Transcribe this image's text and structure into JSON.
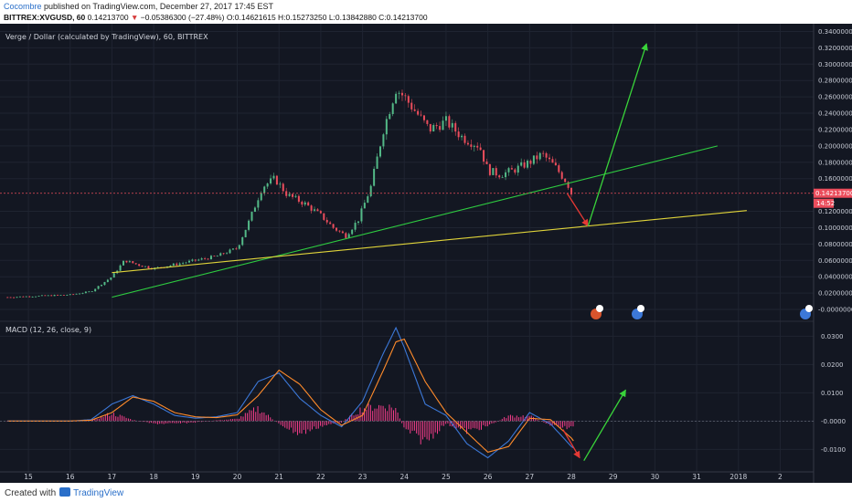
{
  "header": {
    "author": "Cocombre",
    "published": " published on TradingView.com, December 27, 2017 17:45 EST",
    "symbol": "BITTREX:XVGUSD, 60",
    "last": "0.14213700",
    "change_arrow": "▼",
    "change": "−0.05386300 (−27.48%)",
    "ohlc": "O:0.14621615 H:0.15273250 L:0.13842880 C:0.14213700"
  },
  "main_pane": {
    "title": "Verge / Dollar (calculated by TradingView), 60, BITTREX",
    "price_tag": "0.14213700",
    "time_tag": "14:52"
  },
  "macd_pane": {
    "title": "MACD (12, 26, close, 9)"
  },
  "footer": {
    "created_with": "Created with",
    "brand": "TradingView"
  },
  "colors": {
    "background": "#131722",
    "up": "#53b987",
    "down": "#eb4d5c",
    "macd_line": "#3c78d8",
    "signal_line": "#ff8b2b",
    "histogram": "#ff3f8f",
    "green_trend": "#2ecc40",
    "yellow_trend": "#e0d43a",
    "projection_up": "#39d43a",
    "projection_down": "#e53935"
  },
  "chart_data": [
    {
      "type": "line",
      "pane": "price",
      "title": "Verge / Dollar (calculated by TradingView), 60, BITTREX",
      "x": [
        "14.5",
        "15",
        "15.5",
        "16",
        "16.5",
        "17",
        "17.3",
        "17.6",
        "18",
        "18.5",
        "19",
        "19.5",
        "20",
        "20.3",
        "20.6",
        "20.9",
        "21.2",
        "21.6",
        "22",
        "22.3",
        "22.6",
        "22.9",
        "23.2",
        "23.5",
        "23.8",
        "24",
        "24.3",
        "24.6",
        "25",
        "25.4",
        "25.8",
        "26",
        "26.3",
        "26.6",
        "27",
        "27.3",
        "27.6",
        "27.9",
        "28.0"
      ],
      "close": [
        0.015,
        0.016,
        0.017,
        0.018,
        0.022,
        0.04,
        0.06,
        0.055,
        0.05,
        0.055,
        0.06,
        0.065,
        0.075,
        0.11,
        0.15,
        0.16,
        0.14,
        0.13,
        0.115,
        0.1,
        0.09,
        0.11,
        0.15,
        0.22,
        0.27,
        0.26,
        0.24,
        0.22,
        0.23,
        0.21,
        0.2,
        0.17,
        0.165,
        0.17,
        0.18,
        0.19,
        0.175,
        0.155,
        0.142
      ],
      "xlabel": "",
      "ylabel": "",
      "ylim": [
        -0.01,
        0.345
      ],
      "y_ticks": [
        "0.34000000",
        "0.32000000",
        "0.30000000",
        "0.28000000",
        "0.26000000",
        "0.24000000",
        "0.22000000",
        "0.20000000",
        "0.18000000",
        "0.16000000",
        "0.12000000",
        "0.10000000",
        "0.08000000",
        "0.06000000",
        "0.04000000",
        "0.02000000",
        "-0.00000000"
      ],
      "x_ticks": [
        "15",
        "16",
        "17",
        "18",
        "19",
        "20",
        "21",
        "22",
        "23",
        "24",
        "25",
        "26",
        "27",
        "28",
        "29",
        "30",
        "31",
        "2018",
        "2"
      ],
      "last_price": 0.142137,
      "trendlines": [
        {
          "name": "green",
          "x": [
            17,
            31.5
          ],
          "y": [
            0.015,
            0.2
          ]
        },
        {
          "name": "yellow",
          "x": [
            17,
            32.2
          ],
          "y": [
            0.045,
            0.121
          ]
        }
      ],
      "projections": [
        {
          "name": "down",
          "x": [
            27.9,
            28.4
          ],
          "y": [
            0.142,
            0.102
          ]
        },
        {
          "name": "up",
          "x": [
            28.4,
            29.8
          ],
          "y": [
            0.102,
            0.325
          ]
        }
      ]
    },
    {
      "type": "line",
      "pane": "macd",
      "title": "MACD (12, 26, close, 9)",
      "x": [
        "14.5",
        "15",
        "16",
        "16.5",
        "17",
        "17.5",
        "18",
        "18.5",
        "19",
        "19.5",
        "20",
        "20.5",
        "21",
        "21.5",
        "22",
        "22.5",
        "23",
        "23.5",
        "23.8",
        "24",
        "24.5",
        "25",
        "25.5",
        "26",
        "26.5",
        "27",
        "27.5",
        "28",
        "28.1"
      ],
      "series": [
        {
          "name": "",
          "values": [
            0,
            0,
            0,
            0.0005,
            0.006,
            0.009,
            0.006,
            0.002,
            0.001,
            0.0015,
            0.003,
            0.014,
            0.017,
            0.008,
            0.002,
            -0.002,
            0.007,
            0.024,
            0.033,
            0.026,
            0.006,
            0.002,
            -0.008,
            -0.013,
            -0.007,
            0.003,
            -0.001,
            -0.009,
            -0.01
          ]
        },
        {
          "name": "",
          "values": [
            0,
            0,
            0,
            0.0003,
            0.003,
            0.0085,
            0.007,
            0.003,
            0.0015,
            0.0012,
            0.0022,
            0.009,
            0.018,
            0.013,
            0.004,
            -0.0015,
            0.002,
            0.018,
            0.028,
            0.029,
            0.014,
            0.003,
            -0.004,
            -0.011,
            -0.009,
            0.001,
            0.0005,
            -0.006,
            -0.008
          ]
        }
      ],
      "histogram": [
        0,
        0,
        0,
        0.0002,
        0.003,
        0.0005,
        -0.001,
        -0.001,
        -0.0005,
        0.0003,
        0.0008,
        0.005,
        -0.001,
        -0.005,
        -0.002,
        -0.0005,
        0.005,
        0.006,
        0.005,
        -0.003,
        -0.008,
        -0.001,
        -0.004,
        -0.002,
        0.002,
        0.002,
        -0.0015,
        -0.003,
        -0.002
      ],
      "ylim": [
        -0.017,
        0.034
      ],
      "y_ticks": [
        "0.0300",
        "0.0200",
        "0.0100",
        "-0.0000",
        "-0.0100"
      ],
      "projections": [
        {
          "name": "down",
          "x": [
            27.8,
            28.2
          ],
          "y": [
            -0.003,
            -0.013
          ]
        },
        {
          "name": "up",
          "x": [
            28.3,
            29.3
          ],
          "y": [
            -0.014,
            0.011
          ]
        }
      ]
    }
  ]
}
